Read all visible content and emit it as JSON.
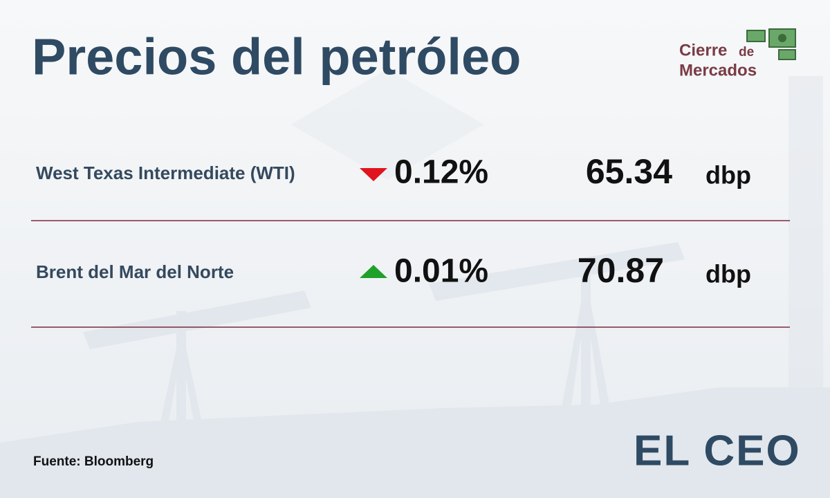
{
  "header": {
    "title": "Precios del petróleo"
  },
  "badge": {
    "line1": "Cierre",
    "connector": "de",
    "line2": "Mercados"
  },
  "table": {
    "rows": [
      {
        "name": "West Texas Intermediate (WTI)",
        "direction": "down",
        "change": "0.12%",
        "price": "65.34",
        "unit": "dbp"
      },
      {
        "name": "Brent del Mar del Norte",
        "direction": "up",
        "change": "0.01%",
        "price": "70.87",
        "unit": "dbp"
      }
    ]
  },
  "footer": {
    "source": "Fuente: Bloomberg",
    "logo": "EL CEO"
  }
}
